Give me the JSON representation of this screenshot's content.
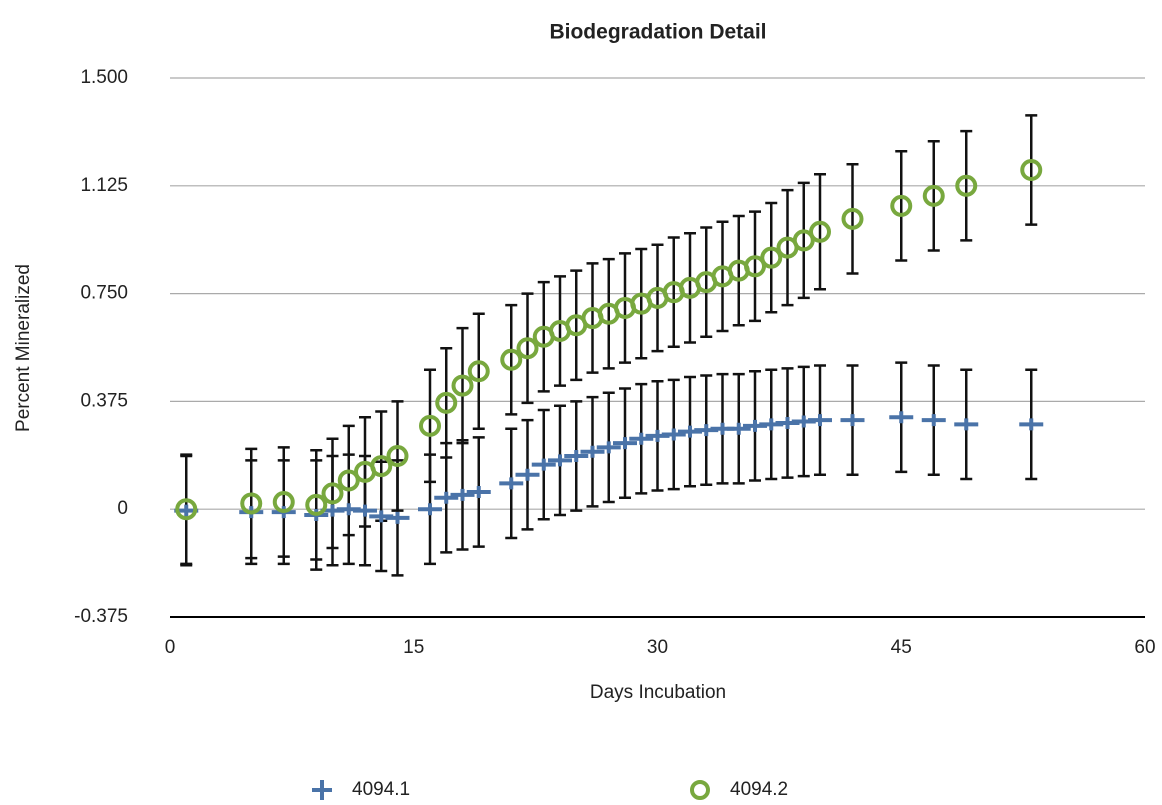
{
  "chart_data": {
    "type": "scatter",
    "title": "Biodegradation Detail",
    "x_label": "Days Incubation",
    "y_label": "Percent Mineralized",
    "xlim": [
      0,
      60
    ],
    "xticks": [
      0,
      15,
      30,
      45,
      60
    ],
    "ylim": [
      -0.375,
      1.5
    ],
    "yticks": [
      -0.375,
      0,
      0.375,
      {
        "value": 0.75,
        "label": "0.750"
      },
      1.125,
      {
        "value": 1.5,
        "label": "1.500"
      }
    ],
    "grid": true,
    "x": [
      1,
      5,
      7,
      9,
      10,
      11,
      12,
      13,
      14,
      16,
      17,
      18,
      19,
      21,
      22,
      23,
      24,
      25,
      26,
      27,
      28,
      29,
      30,
      31,
      32,
      33,
      34,
      35,
      36,
      37,
      38,
      39,
      40,
      42,
      45,
      47,
      49,
      53
    ],
    "series": [
      {
        "name": "4094.1",
        "color": "#4a73a8",
        "marker": "plus",
        "values": [
          -0.005,
          -0.01,
          -0.01,
          -0.02,
          -0.005,
          0,
          -0.005,
          -0.025,
          -0.03,
          0,
          0.04,
          0.05,
          0.06,
          0.09,
          0.12,
          0.155,
          0.17,
          0.185,
          0.2,
          0.215,
          0.23,
          0.245,
          0.255,
          0.26,
          0.27,
          0.275,
          0.28,
          0.28,
          0.29,
          0.295,
          0.3,
          0.305,
          0.31,
          0.31,
          0.32,
          0.31,
          0.295,
          0.295
        ],
        "errors": [
          0.19,
          0.18,
          0.18,
          0.19,
          0.19,
          0.19,
          0.19,
          0.19,
          0.2,
          0.19,
          0.19,
          0.19,
          0.19,
          0.19,
          0.19,
          0.19,
          0.19,
          0.19,
          0.19,
          0.19,
          0.19,
          0.19,
          0.19,
          0.19,
          0.19,
          0.19,
          0.19,
          0.19,
          0.19,
          0.19,
          0.19,
          0.19,
          0.19,
          0.19,
          0.19,
          0.19,
          0.19,
          0.19
        ]
      },
      {
        "name": "4094.2",
        "color": "#78a83e",
        "marker": "circle",
        "values": [
          0,
          0.02,
          0.025,
          0.015,
          0.055,
          0.1,
          0.13,
          0.15,
          0.185,
          0.29,
          0.37,
          0.43,
          0.48,
          0.52,
          0.56,
          0.6,
          0.62,
          0.64,
          0.665,
          0.68,
          0.7,
          0.715,
          0.735,
          0.755,
          0.77,
          0.79,
          0.81,
          0.83,
          0.845,
          0.875,
          0.91,
          0.935,
          0.965,
          1.01,
          1.055,
          1.09,
          1.125,
          1.18
        ],
        "errors": [
          0.19,
          0.19,
          0.19,
          0.19,
          0.19,
          0.19,
          0.19,
          0.19,
          0.19,
          0.195,
          0.19,
          0.2,
          0.2,
          0.19,
          0.19,
          0.19,
          0.19,
          0.19,
          0.19,
          0.19,
          0.19,
          0.19,
          0.185,
          0.19,
          0.19,
          0.19,
          0.19,
          0.19,
          0.19,
          0.19,
          0.2,
          0.2,
          0.2,
          0.19,
          0.19,
          0.19,
          0.19,
          0.19
        ]
      }
    ]
  }
}
